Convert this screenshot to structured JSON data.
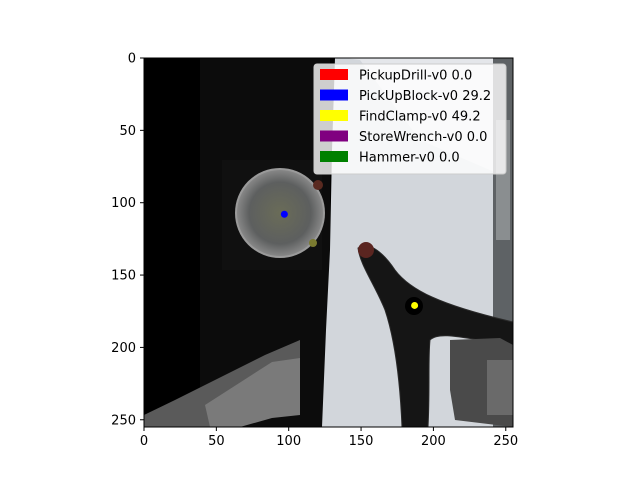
{
  "chart_data": {
    "type": "image",
    "title": "",
    "xlabel": "",
    "ylabel": "",
    "xlim": [
      0,
      255
    ],
    "ylim": [
      255,
      0
    ],
    "xticks": [
      0,
      50,
      100,
      150,
      200,
      250
    ],
    "yticks": [
      0,
      50,
      100,
      150,
      200,
      250
    ],
    "grid": false,
    "legend_position": "top-right",
    "legend": [
      {
        "label": "PickupDrill-v0 0.0",
        "color": "#ff0000"
      },
      {
        "label": "PickUpBlock-v0 29.2",
        "color": "#0000ff"
      },
      {
        "label": "FindClamp-v0 49.2",
        "color": "#ffff00"
      },
      {
        "label": "StoreWrench-v0 0.0",
        "color": "#800080"
      },
      {
        "label": "Hammer-v0 0.0",
        "color": "#008000"
      }
    ],
    "points": [
      {
        "name": "PickUpBlock-v0",
        "x": 97,
        "y": 108,
        "color": "#0000ff"
      },
      {
        "name": "FindClamp-v0",
        "x": 187,
        "y": 171,
        "color": "#ffff00"
      }
    ]
  }
}
